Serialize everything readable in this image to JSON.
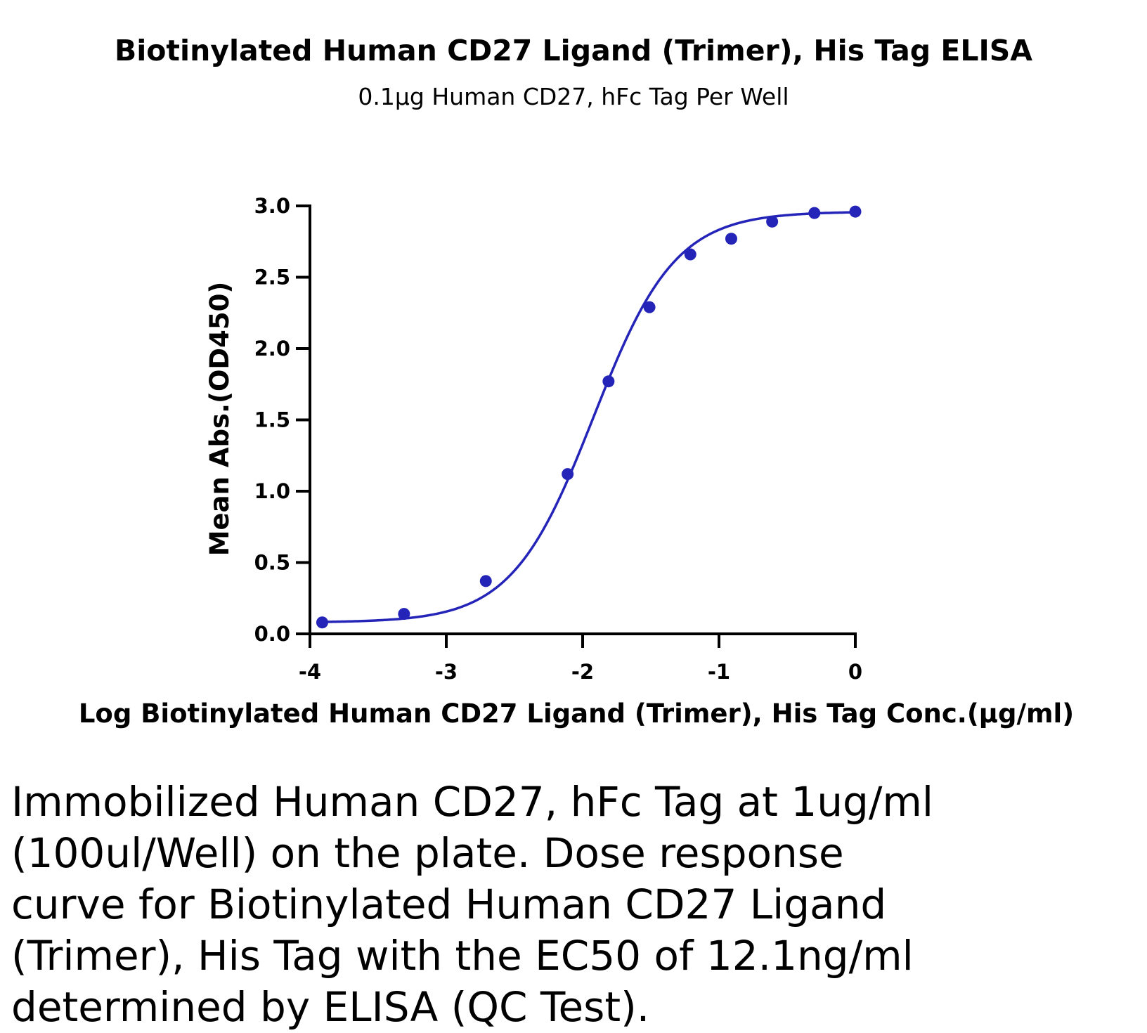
{
  "chart_data": {
    "type": "scatter",
    "title": "Biotinylated Human CD27 Ligand (Trimer), His Tag ELISA",
    "subtitle": "0.1µg Human CD27, hFc Tag Per Well",
    "xlabel": "Log Biotinylated Human CD27 Ligand (Trimer), His Tag Conc.(µg/ml)",
    "ylabel": "Mean Abs.(OD450)",
    "xlim": [
      -4,
      0
    ],
    "ylim": [
      0,
      3.0
    ],
    "x_ticks": [
      "-4",
      "-3",
      "-2",
      "-1",
      "0"
    ],
    "y_ticks": [
      "0.0",
      "0.5",
      "1.0",
      "1.5",
      "2.0",
      "2.5",
      "3.0"
    ],
    "grid": false,
    "series": [
      {
        "x": [
          -3.91,
          -3.31,
          -2.71,
          -2.11,
          -1.81,
          -1.51,
          -1.21,
          -0.91,
          -0.61,
          -0.3,
          0.0
        ],
        "y": [
          0.08,
          0.14,
          0.37,
          1.12,
          1.77,
          2.29,
          2.66,
          2.77,
          2.89,
          2.95,
          2.96
        ],
        "fit": "four-parameter logistic",
        "color": "#2424b8"
      }
    ]
  },
  "caption": "Immobilized Human CD27, hFc Tag at 1ug/ml (100ul/Well) on the plate. Dose response curve for Biotinylated Human CD27 Ligand (Trimer), His Tag with the EC50 of 12.1ng/ml determined by ELISA (QC Test)."
}
